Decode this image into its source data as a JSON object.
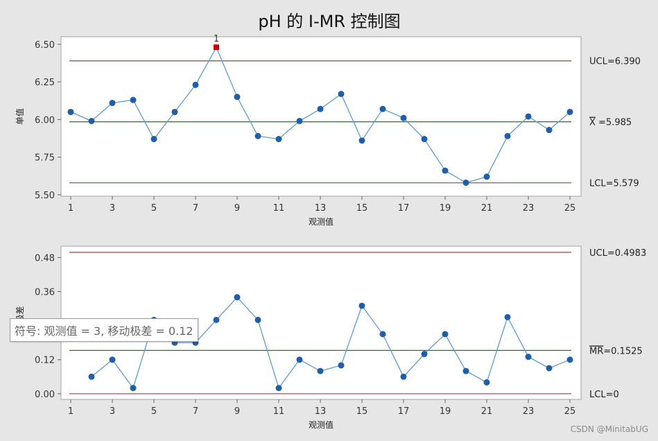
{
  "title": "pH 的 I-MR 控制图",
  "chart_data": [
    {
      "type": "line",
      "name": "individuals",
      "ylabel": "单值",
      "xlabel": "观测值",
      "x": [
        1,
        2,
        3,
        4,
        5,
        6,
        7,
        8,
        9,
        10,
        11,
        12,
        13,
        14,
        15,
        16,
        17,
        18,
        19,
        20,
        21,
        22,
        23,
        24,
        25
      ],
      "values": [
        6.05,
        5.99,
        6.11,
        6.13,
        5.87,
        6.05,
        6.23,
        6.48,
        6.15,
        5.89,
        5.87,
        5.99,
        6.07,
        6.17,
        5.86,
        6.07,
        6.01,
        5.87,
        5.66,
        5.58,
        5.62,
        5.89,
        6.02,
        5.93,
        6.05
      ],
      "xticks": [
        1,
        3,
        5,
        7,
        9,
        11,
        13,
        15,
        17,
        19,
        21,
        23,
        25
      ],
      "yticks": [
        "5.50",
        "5.75",
        "6.00",
        "6.25",
        "6.50"
      ],
      "ylim": [
        5.49,
        6.55
      ],
      "ucl": 6.39,
      "center": 5.985,
      "lcl": 5.579,
      "ucl_label": "UCL=6.390",
      "center_label_bar": "X",
      "center_label_rest": " =5.985",
      "lcl_label": "LCL=5.579",
      "flagged_point": 8,
      "flag_label": "1"
    },
    {
      "type": "line",
      "name": "moving-range",
      "ylabel": "移动极差",
      "xlabel": "观测值",
      "x": [
        2,
        3,
        4,
        5,
        6,
        7,
        8,
        9,
        10,
        11,
        12,
        13,
        14,
        15,
        16,
        17,
        18,
        19,
        20,
        21,
        22,
        23,
        24,
        25
      ],
      "values": [
        0.06,
        0.12,
        0.02,
        0.26,
        0.18,
        0.18,
        0.26,
        0.34,
        0.26,
        0.02,
        0.12,
        0.08,
        0.1,
        0.31,
        0.21,
        0.06,
        0.14,
        0.21,
        0.08,
        0.04,
        0.27,
        0.13,
        0.09,
        0.12
      ],
      "xticks": [
        1,
        3,
        5,
        7,
        9,
        11,
        13,
        15,
        17,
        19,
        21,
        23,
        25
      ],
      "yticks": [
        "0.00",
        "0.12",
        "0.24",
        "0.36",
        "0.48"
      ],
      "ylim": [
        -0.02,
        0.52
      ],
      "ucl": 0.4983,
      "center": 0.1525,
      "lcl": 0,
      "ucl_label": "UCL=0.4983",
      "center_label_bar": "MR",
      "center_label_rest": "=0.1525",
      "lcl_label": "LCL=0"
    }
  ],
  "colors": {
    "line": "#5b9bd5",
    "point": "#1f5fa8",
    "flag": "#cc0000",
    "limit": "#b03a2e",
    "center": "#1e7a1e"
  },
  "tooltip": "符号: 观测值 = 3, 移动极差 = 0.12",
  "watermark": "CSDN @MinitabUG"
}
